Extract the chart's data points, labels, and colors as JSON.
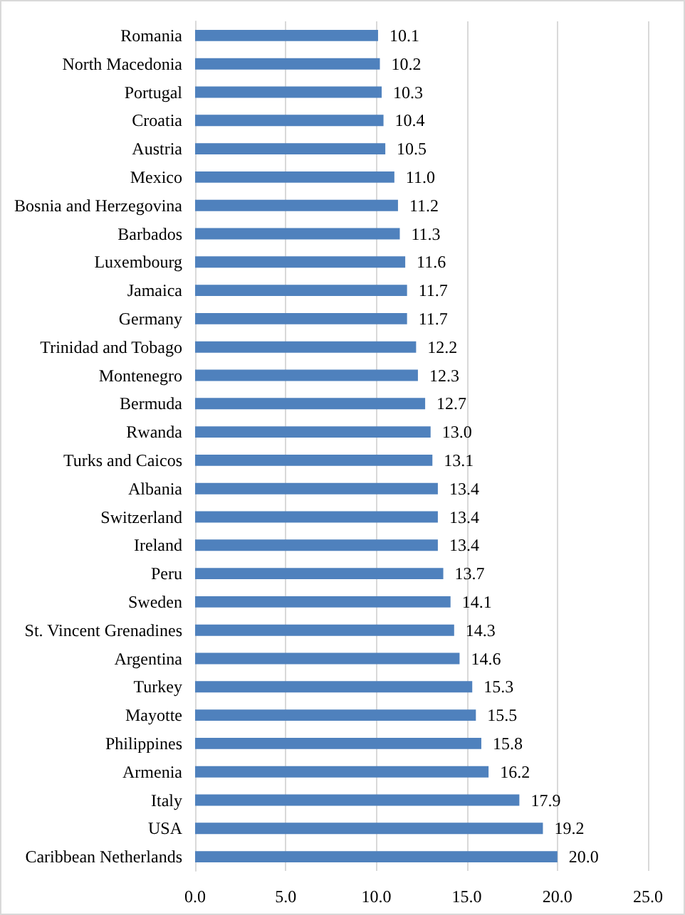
{
  "chart_data": {
    "type": "bar",
    "orientation": "horizontal",
    "categories": [
      "Romania",
      "North Macedonia",
      "Portugal",
      "Croatia",
      "Austria",
      "Mexico",
      "Bosnia and Herzegovina",
      "Barbados",
      "Luxembourg",
      "Jamaica",
      "Germany",
      "Trinidad and Tobago",
      "Montenegro",
      "Bermuda",
      "Rwanda",
      "Turks and Caicos",
      "Albania",
      "Switzerland",
      "Ireland",
      "Peru",
      "Sweden",
      "St. Vincent Grenadines",
      "Argentina",
      "Turkey",
      "Mayotte",
      "Philippines",
      "Armenia",
      "Italy",
      "USA",
      "Caribbean Netherlands"
    ],
    "values": [
      10.1,
      10.2,
      10.3,
      10.4,
      10.5,
      11.0,
      11.2,
      11.3,
      11.6,
      11.7,
      11.7,
      12.2,
      12.3,
      12.7,
      13.0,
      13.1,
      13.4,
      13.4,
      13.4,
      13.7,
      14.1,
      14.3,
      14.6,
      15.3,
      15.5,
      15.8,
      16.2,
      17.9,
      19.2,
      20.0
    ],
    "value_labels": [
      "10.1",
      "10.2",
      "10.3",
      "10.4",
      "10.5",
      "11.0",
      "11.2",
      "11.3",
      "11.6",
      "11.7",
      "11.7",
      "12.2",
      "12.3",
      "12.7",
      "13.0",
      "13.1",
      "13.4",
      "13.4",
      "13.4",
      "13.7",
      "14.1",
      "14.3",
      "14.6",
      "15.3",
      "15.5",
      "15.8",
      "16.2",
      "17.9",
      "19.2",
      "20.0"
    ],
    "color": "#4f81bd",
    "xlim": [
      0,
      25
    ],
    "xticks": [
      {
        "value": 0,
        "label": "0.0"
      },
      {
        "value": 5,
        "label": "5.0"
      },
      {
        "value": 10,
        "label": "10.0"
      },
      {
        "value": 15,
        "label": "15.0"
      },
      {
        "value": 20,
        "label": "20.0"
      },
      {
        "value": 25,
        "label": "25.0"
      }
    ],
    "grid": "x"
  }
}
